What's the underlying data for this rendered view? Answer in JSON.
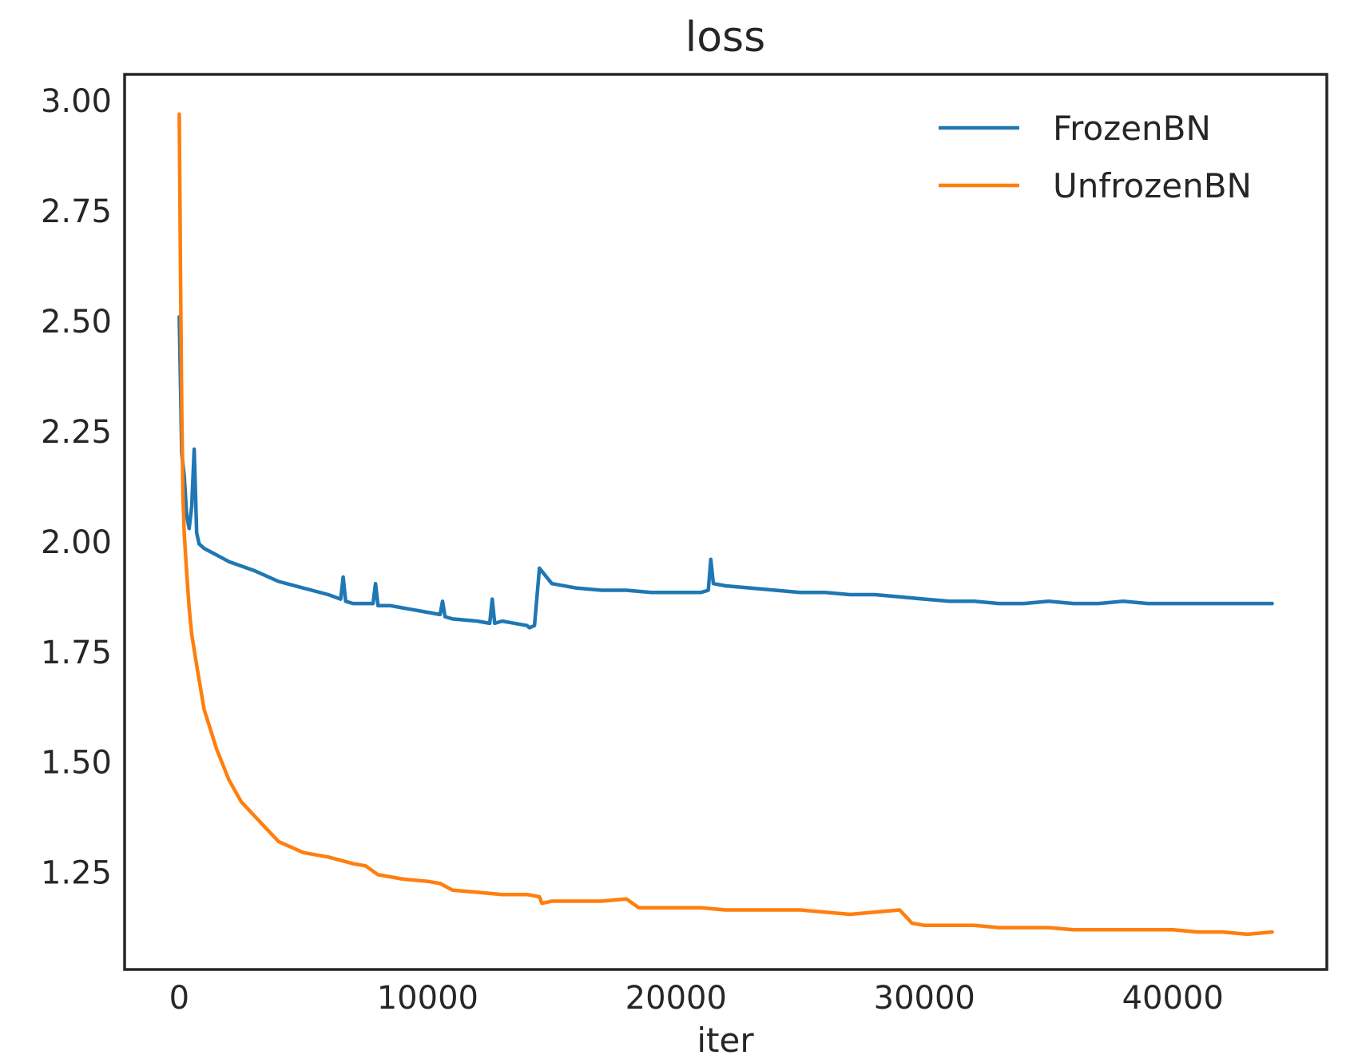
{
  "chart_data": {
    "type": "line",
    "title": "loss",
    "xlabel": "iter",
    "ylabel": "",
    "xlim": [
      -2200,
      46200
    ],
    "ylim": [
      1.03,
      3.06
    ],
    "xticks": [
      0,
      10000,
      20000,
      30000,
      40000
    ],
    "xtick_labels": [
      "0",
      "10000",
      "20000",
      "30000",
      "40000"
    ],
    "yticks": [
      1.25,
      1.5,
      1.75,
      2.0,
      2.25,
      2.5,
      2.75,
      3.0
    ],
    "ytick_labels": [
      "1.25",
      "1.50",
      "1.75",
      "2.00",
      "2.25",
      "2.50",
      "2.75",
      "3.00"
    ],
    "grid": false,
    "legend_position": "top-right",
    "series": [
      {
        "name": "FrozenBN",
        "color": "#1f77b4",
        "x": [
          0,
          100,
          200,
          300,
          400,
          500,
          600,
          700,
          800,
          1000,
          1500,
          2000,
          3000,
          4000,
          5000,
          6000,
          6500,
          6600,
          6700,
          7000,
          7800,
          7900,
          8000,
          8500,
          9000,
          10000,
          10500,
          10600,
          10700,
          11000,
          12000,
          12500,
          12600,
          12700,
          13000,
          14000,
          14100,
          14300,
          14500,
          15000,
          16000,
          17000,
          18000,
          19000,
          20000,
          21000,
          21300,
          21400,
          21500,
          22000,
          23000,
          24000,
          25000,
          26000,
          27000,
          28000,
          29000,
          30000,
          31000,
          32000,
          33000,
          34000,
          35000,
          36000,
          37000,
          38000,
          39000,
          40000,
          41000,
          42000,
          43000,
          44000
        ],
        "y": [
          2.51,
          2.2,
          2.15,
          2.06,
          2.03,
          2.08,
          2.21,
          2.02,
          1.995,
          1.985,
          1.97,
          1.955,
          1.935,
          1.91,
          1.895,
          1.88,
          1.87,
          1.92,
          1.865,
          1.86,
          1.86,
          1.905,
          1.855,
          1.855,
          1.85,
          1.84,
          1.835,
          1.865,
          1.83,
          1.825,
          1.82,
          1.815,
          1.87,
          1.815,
          1.82,
          1.81,
          1.805,
          1.81,
          1.94,
          1.905,
          1.895,
          1.89,
          1.89,
          1.885,
          1.885,
          1.885,
          1.89,
          1.96,
          1.905,
          1.9,
          1.895,
          1.89,
          1.885,
          1.885,
          1.88,
          1.88,
          1.875,
          1.87,
          1.865,
          1.865,
          1.86,
          1.86,
          1.865,
          1.86,
          1.86,
          1.865,
          1.86,
          1.86,
          1.86,
          1.86,
          1.86,
          1.86
        ]
      },
      {
        "name": "UnfrozenBN",
        "color": "#ff7f0e",
        "x": [
          0,
          50,
          100,
          150,
          200,
          300,
          400,
          500,
          700,
          1000,
          1500,
          2000,
          2500,
          3000,
          3500,
          4000,
          5000,
          6000,
          7000,
          7500,
          8000,
          9000,
          10000,
          10500,
          11000,
          12000,
          13000,
          14000,
          14500,
          14600,
          15000,
          16000,
          17000,
          18000,
          18500,
          19000,
          20000,
          21000,
          22000,
          23000,
          24000,
          25000,
          26000,
          27000,
          28000,
          29000,
          29500,
          30000,
          31000,
          32000,
          33000,
          34000,
          35000,
          36000,
          37000,
          38000,
          39000,
          40000,
          41000,
          42000,
          43000,
          44000
        ],
        "y": [
          2.97,
          2.6,
          2.3,
          2.1,
          2.02,
          1.93,
          1.85,
          1.79,
          1.72,
          1.62,
          1.53,
          1.46,
          1.41,
          1.38,
          1.35,
          1.32,
          1.295,
          1.285,
          1.27,
          1.265,
          1.245,
          1.235,
          1.23,
          1.225,
          1.21,
          1.205,
          1.2,
          1.2,
          1.195,
          1.18,
          1.185,
          1.185,
          1.185,
          1.19,
          1.17,
          1.17,
          1.17,
          1.17,
          1.165,
          1.165,
          1.165,
          1.165,
          1.16,
          1.155,
          1.16,
          1.165,
          1.135,
          1.13,
          1.13,
          1.13,
          1.125,
          1.125,
          1.125,
          1.12,
          1.12,
          1.12,
          1.12,
          1.12,
          1.115,
          1.115,
          1.11,
          1.115
        ]
      }
    ]
  }
}
